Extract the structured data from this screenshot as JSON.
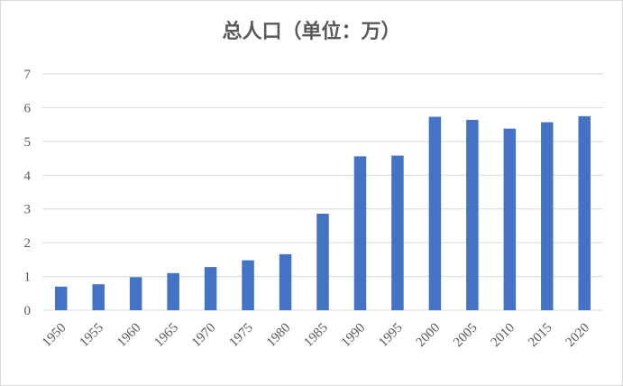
{
  "chart_data": {
    "type": "bar",
    "title": "总人口（单位：万）",
    "xlabel": "",
    "ylabel": "",
    "categories": [
      "1950",
      "1955",
      "1960",
      "1965",
      "1970",
      "1975",
      "1980",
      "1985",
      "1990",
      "1995",
      "2000",
      "2005",
      "2010",
      "2015",
      "2020"
    ],
    "values": [
      0.7,
      0.77,
      0.98,
      1.1,
      1.28,
      1.48,
      1.66,
      2.86,
      4.56,
      4.58,
      5.73,
      5.64,
      5.38,
      5.57,
      5.75
    ],
    "ylim": [
      0,
      7
    ],
    "yticks": [
      "0",
      "1",
      "2",
      "3",
      "4",
      "5",
      "6",
      "7"
    ],
    "grid": true,
    "legend": "none",
    "bar_color": "#4472c4",
    "grid_color": "#d9d9d9",
    "text_color": "#595959"
  }
}
